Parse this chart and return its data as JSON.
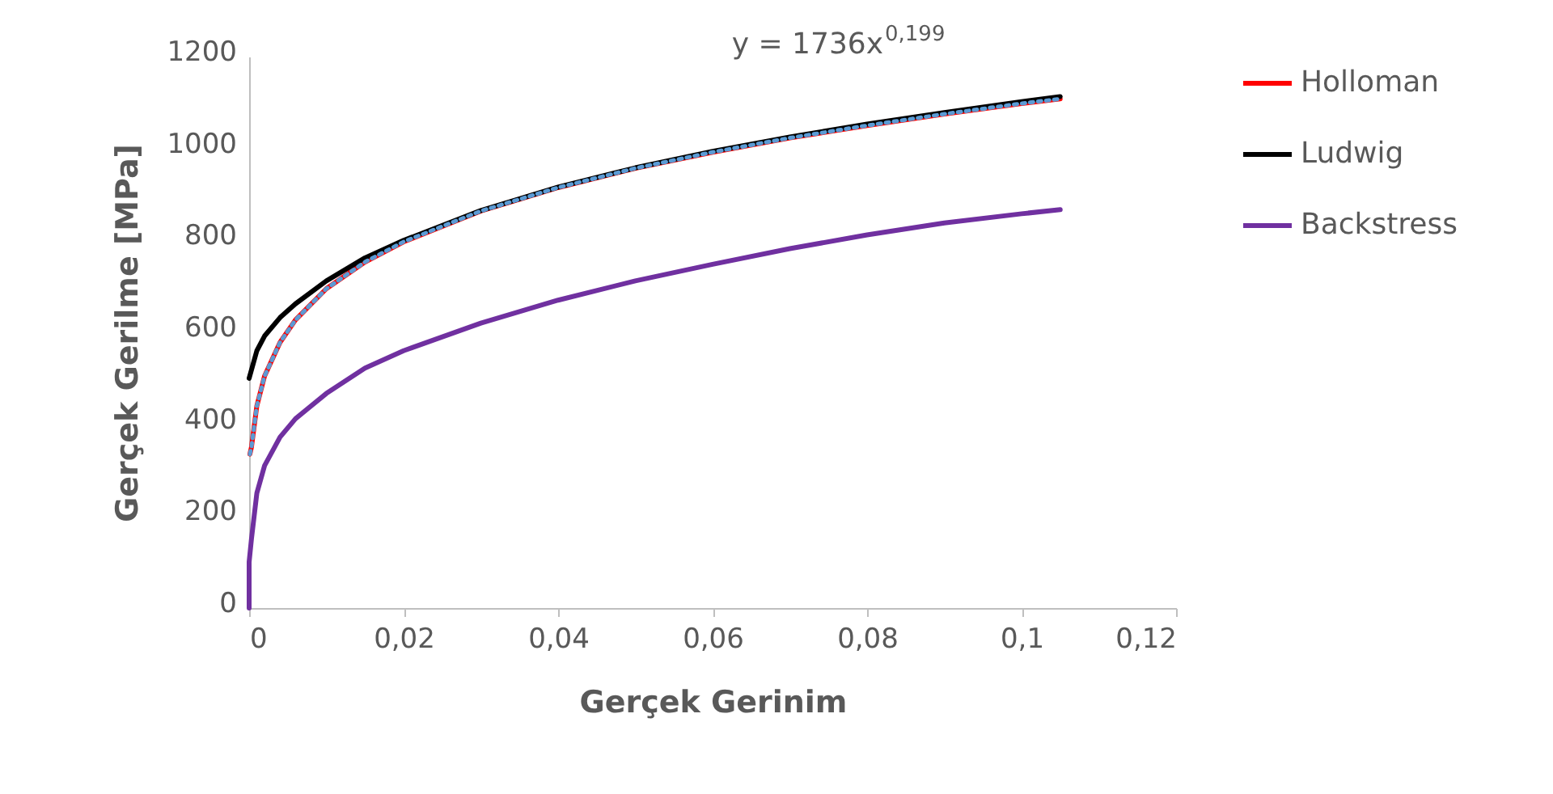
{
  "chart_data": {
    "type": "line",
    "xlabel": "Gerçek Gerinim",
    "ylabel": "Gerçek Gerilme [MPa]",
    "xlim": [
      0,
      0.12
    ],
    "xticks": [
      {
        "value": 0,
        "label": "0"
      },
      {
        "value": 0.02,
        "label": "0,02"
      },
      {
        "value": 0.04,
        "label": "0,04"
      },
      {
        "value": 0.06,
        "label": "0,06"
      },
      {
        "value": 0.08,
        "label": "0,08"
      },
      {
        "value": 0.1,
        "label": "0,1"
      },
      {
        "value": 0.12,
        "label": "0,12"
      }
    ],
    "ylim": [
      0,
      1200
    ],
    "yticks": [
      0,
      200,
      400,
      600,
      800,
      1000,
      1200
    ],
    "grid": false,
    "legend": "right",
    "marker": "none",
    "line_style": "solid",
    "annotations": [
      "y = 1736x$^{0,199}$"
    ],
    "series": [
      {
        "name": "Holloman",
        "color": "#ff0000",
        "x": [
          0.0001,
          0.0003,
          0.001,
          0.002,
          0.004,
          0.006,
          0.01,
          0.015,
          0.02,
          0.03,
          0.04,
          0.05,
          0.06,
          0.07,
          0.08,
          0.09,
          0.1,
          0.105
        ],
        "values": [
          335,
          350,
          440,
          505,
          578,
          627,
          695,
          753,
          797,
          864,
          915,
          957,
          992,
          1023,
          1050,
          1075,
          1098,
          1108
        ]
      },
      {
        "name": "Ludwig",
        "color": "#000000",
        "x": [
          0,
          0.001,
          0.002,
          0.004,
          0.006,
          0.01,
          0.015,
          0.02,
          0.03,
          0.04,
          0.05,
          0.06,
          0.07,
          0.08,
          0.09,
          0.1,
          0.105
        ],
        "values": [
          500,
          560,
          592,
          632,
          662,
          712,
          762,
          800,
          865,
          916,
          958,
          994,
          1025,
          1053,
          1078,
          1102,
          1113
        ]
      },
      {
        "name": "Backstress",
        "color": "#7030a0",
        "x": [
          0,
          0,
          0.0003,
          0.001,
          0.002,
          0.004,
          0.006,
          0.01,
          0.015,
          0.02,
          0.03,
          0.04,
          0.05,
          0.06,
          0.07,
          0.08,
          0.09,
          0.1,
          0.105
        ],
        "values": [
          0,
          100,
          150,
          250,
          310,
          372,
          412,
          467,
          522,
          560,
          620,
          670,
          712,
          748,
          782,
          812,
          838,
          858,
          867
        ]
      },
      {
        "type": "line",
        "color": "#5b9bd5",
        "line_style": "dotted",
        "x": [
          0.0001,
          0.0003,
          0.001,
          0.002,
          0.004,
          0.006,
          0.01,
          0.015,
          0.02,
          0.03,
          0.04,
          0.05,
          0.06,
          0.07,
          0.08,
          0.09,
          0.1,
          0.105
        ],
        "values": [
          335,
          350,
          440,
          505,
          578,
          627,
          695,
          753,
          797,
          864,
          915,
          957,
          992,
          1023,
          1050,
          1075,
          1098,
          1108
        ]
      }
    ]
  }
}
